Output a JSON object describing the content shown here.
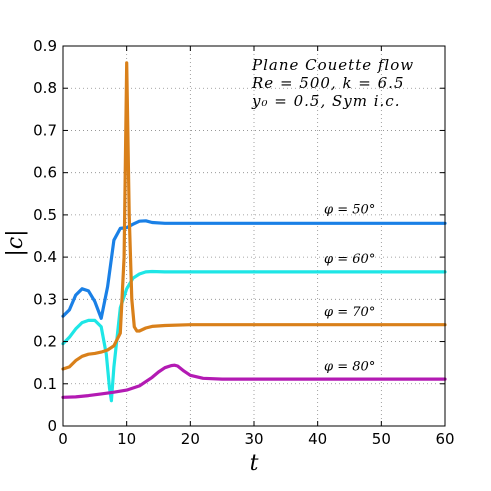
{
  "chart_data": {
    "type": "line",
    "xlabel": "t",
    "ylabel": "|c|",
    "xlim": [
      0,
      60
    ],
    "ylim": [
      0,
      0.9
    ],
    "xticks": [
      0,
      10,
      20,
      30,
      40,
      50,
      60
    ],
    "yticks": [
      0,
      0.1,
      0.2,
      0.3,
      0.4,
      0.5,
      0.6,
      0.7,
      0.8,
      0.9
    ],
    "xtick_labels": [
      "0",
      "10",
      "20",
      "30",
      "40",
      "50",
      "60"
    ],
    "ytick_labels": [
      "0",
      "0.1",
      "0.2",
      "0.3",
      "0.4",
      "0.5",
      "0.6",
      "0.7",
      "0.8",
      "0.9"
    ],
    "grid": true,
    "annotation": [
      "Plane Couette flow",
      "Re = 500,  k = 6.5",
      "y₀ = 0.5,  Sym i.c."
    ],
    "series": [
      {
        "name": "φ = 50°",
        "color": "#1a80e6",
        "x": [
          0,
          1,
          2,
          3,
          4,
          5,
          6,
          7,
          8,
          9,
          10,
          11,
          12,
          13,
          14,
          16,
          20,
          30,
          40,
          50,
          60
        ],
        "y": [
          0.26,
          0.275,
          0.31,
          0.325,
          0.32,
          0.295,
          0.255,
          0.33,
          0.44,
          0.468,
          0.47,
          0.478,
          0.485,
          0.486,
          0.482,
          0.48,
          0.48,
          0.48,
          0.48,
          0.48,
          0.48
        ]
      },
      {
        "name": "φ = 60°",
        "color": "#1ee6e6",
        "x": [
          0,
          1,
          2,
          3,
          4,
          5,
          6,
          6.8,
          7.3,
          7.6,
          8,
          9,
          10,
          11,
          12,
          13,
          14,
          16,
          20,
          30,
          40,
          50,
          60
        ],
        "y": [
          0.195,
          0.21,
          0.23,
          0.245,
          0.25,
          0.25,
          0.235,
          0.17,
          0.09,
          0.06,
          0.14,
          0.28,
          0.325,
          0.35,
          0.36,
          0.365,
          0.366,
          0.365,
          0.365,
          0.365,
          0.365,
          0.365,
          0.365
        ]
      },
      {
        "name": "φ = 70°",
        "color": "#d9801a",
        "x": [
          0,
          1,
          2,
          3,
          4,
          5,
          6,
          7,
          8,
          9,
          9.6,
          10,
          10.4,
          10.8,
          11.2,
          11.6,
          12,
          13,
          14,
          16,
          20,
          30,
          40,
          50,
          60
        ],
        "y": [
          0.135,
          0.14,
          0.155,
          0.165,
          0.17,
          0.172,
          0.175,
          0.18,
          0.19,
          0.22,
          0.4,
          0.86,
          0.5,
          0.3,
          0.235,
          0.225,
          0.225,
          0.232,
          0.236,
          0.238,
          0.24,
          0.24,
          0.24,
          0.24,
          0.24
        ]
      },
      {
        "name": "φ = 80°",
        "color": "#b31ab3",
        "x": [
          0,
          2,
          4,
          6,
          8,
          10,
          12,
          14,
          15,
          16,
          17,
          17.5,
          18,
          19,
          20,
          22,
          25,
          30,
          40,
          50,
          60
        ],
        "y": [
          0.068,
          0.069,
          0.072,
          0.076,
          0.08,
          0.085,
          0.095,
          0.115,
          0.128,
          0.138,
          0.143,
          0.144,
          0.142,
          0.13,
          0.12,
          0.113,
          0.111,
          0.111,
          0.111,
          0.111,
          0.111
        ]
      }
    ],
    "series_label_positions": [
      {
        "x": 41,
        "y": 0.503
      },
      {
        "x": 41,
        "y": 0.386
      },
      {
        "x": 41,
        "y": 0.261
      },
      {
        "x": 41,
        "y": 0.132
      }
    ]
  }
}
